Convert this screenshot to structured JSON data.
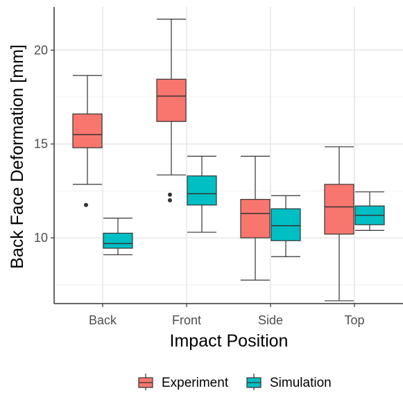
{
  "chart_data": {
    "type": "box",
    "xlabel": "Impact Position",
    "ylabel": "Back Face Deformation [mm]",
    "categories": [
      "Back",
      "Front",
      "Side",
      "Top"
    ],
    "ylim": [
      6.5,
      22.3
    ],
    "yticks": [
      10,
      15,
      20
    ],
    "grid": true,
    "legend_position": "bottom",
    "series": [
      {
        "name": "Experiment",
        "color": "#F8766D",
        "boxes": [
          {
            "category": "Back",
            "min": 12.85,
            "q1": 14.8,
            "median": 15.5,
            "q3": 16.6,
            "max": 18.65,
            "outliers": [
              11.75
            ]
          },
          {
            "category": "Front",
            "min": 13.35,
            "q1": 16.2,
            "median": 17.55,
            "q3": 18.45,
            "max": 21.65,
            "outliers": [
              12.3,
              12.0
            ]
          },
          {
            "category": "Side",
            "min": 7.75,
            "q1": 10.0,
            "median": 11.3,
            "q3": 12.05,
            "max": 14.35,
            "outliers": []
          },
          {
            "category": "Top",
            "min": 6.65,
            "q1": 10.2,
            "median": 11.65,
            "q3": 12.85,
            "max": 14.85,
            "outliers": []
          }
        ]
      },
      {
        "name": "Simulation",
        "color": "#00BFC4",
        "boxes": [
          {
            "category": "Back",
            "min": 9.1,
            "q1": 9.45,
            "median": 9.7,
            "q3": 10.25,
            "max": 11.05,
            "outliers": []
          },
          {
            "category": "Front",
            "min": 10.3,
            "q1": 11.75,
            "median": 12.35,
            "q3": 13.3,
            "max": 14.35,
            "outliers": []
          },
          {
            "category": "Side",
            "min": 9.0,
            "q1": 9.85,
            "median": 10.65,
            "q3": 11.55,
            "max": 12.25,
            "outliers": []
          },
          {
            "category": "Top",
            "min": 10.4,
            "q1": 10.7,
            "median": 11.2,
            "q3": 11.7,
            "max": 12.45,
            "outliers": []
          }
        ]
      }
    ]
  }
}
